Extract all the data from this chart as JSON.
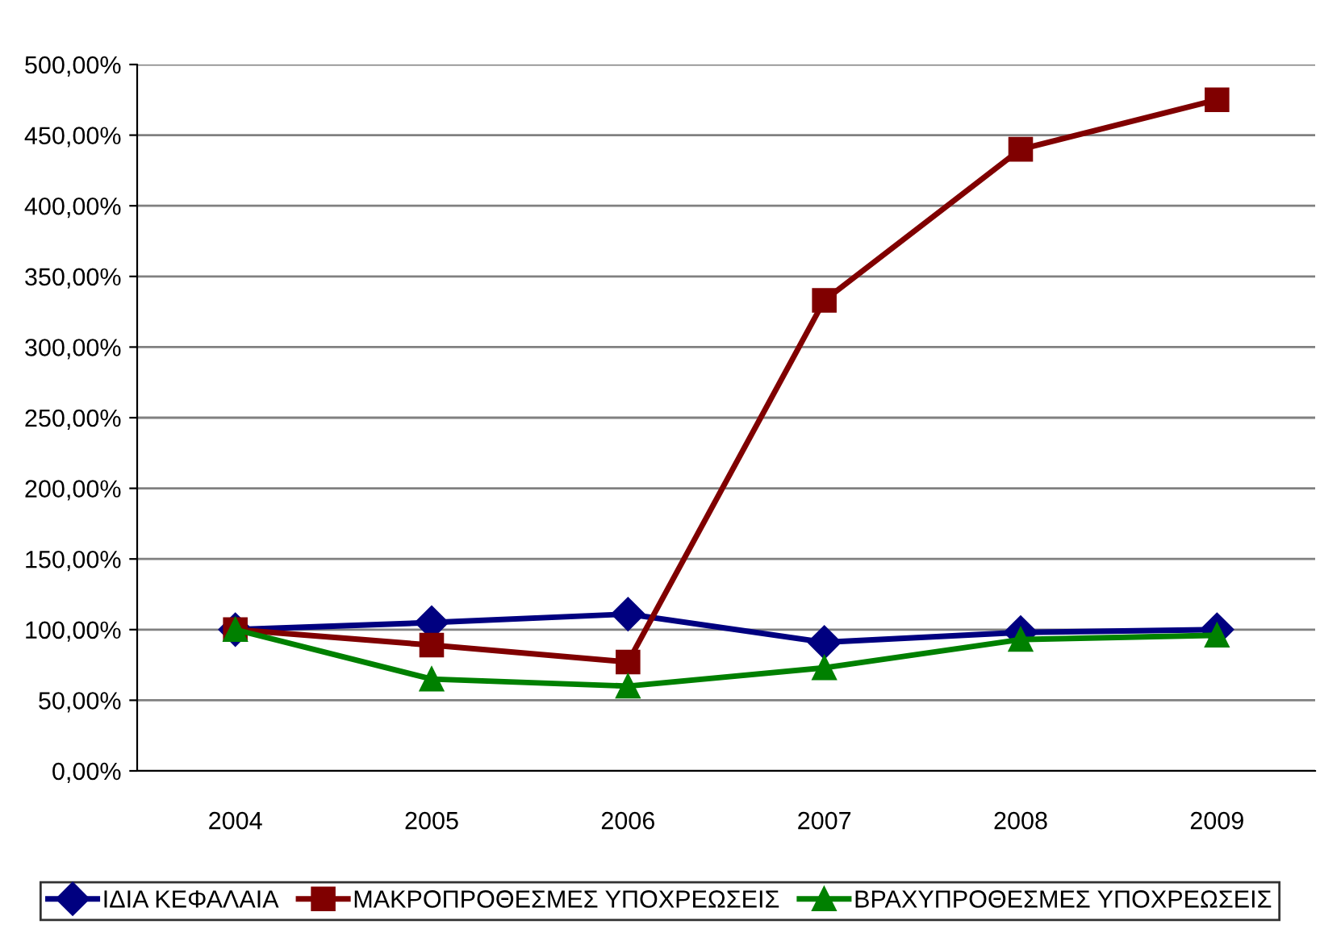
{
  "chart_data": {
    "type": "line",
    "categories": [
      "2004",
      "2005",
      "2006",
      "2007",
      "2008",
      "2009"
    ],
    "series": [
      {
        "name": "ΙΔΙΑ ΚΕΦΑΛΑΙΑ",
        "color": "#000080",
        "marker": "diamond",
        "values": [
          100,
          105,
          111,
          91,
          98,
          100
        ]
      },
      {
        "name": "ΜΑΚΡΟΠΡΟΘΕΣΜΕΣ ΥΠΟΧΡΕΩΣΕΙΣ",
        "color": "#800000",
        "marker": "square",
        "values": [
          100,
          89,
          77,
          333,
          440,
          475
        ]
      },
      {
        "name": "ΒΡΑΧΥΠΡΟΘΕΣΜΕΣ ΥΠΟΧΡΕΩΣΕΙΣ",
        "color": "#008000",
        "marker": "triangle",
        "values": [
          100,
          65,
          60,
          73,
          93,
          96
        ]
      }
    ],
    "ylim": [
      0,
      500
    ],
    "yticks": [
      {
        "value": 0,
        "label": "0,00%"
      },
      {
        "value": 50,
        "label": "50,00%"
      },
      {
        "value": 100,
        "label": "100,00%"
      },
      {
        "value": 150,
        "label": "150,00%"
      },
      {
        "value": 200,
        "label": "200,00%"
      },
      {
        "value": 250,
        "label": "250,00%"
      },
      {
        "value": 300,
        "label": "300,00%"
      },
      {
        "value": 350,
        "label": "350,00%"
      },
      {
        "value": 400,
        "label": "400,00%"
      },
      {
        "value": 450,
        "label": "450,00%"
      },
      {
        "value": 500,
        "label": "500,00%"
      }
    ],
    "grid": "y",
    "legend": "bottom",
    "line_style": "solid"
  }
}
